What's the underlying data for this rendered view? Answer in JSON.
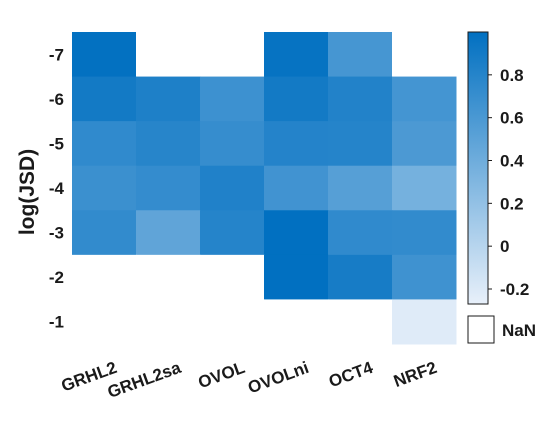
{
  "chart_data": {
    "type": "heatmap",
    "ylabel": "log(JSD)",
    "xlabel": "",
    "title": "",
    "columns": [
      "GRHL2",
      "GRHL2sa",
      "OVOL",
      "OVOLni",
      "OCT4",
      "NRF2"
    ],
    "rows": [
      "-7",
      "-6",
      "-5",
      "-4",
      "-3",
      "-2",
      "-1"
    ],
    "values": [
      [
        0.99,
        null,
        null,
        0.97,
        0.62,
        null
      ],
      [
        0.9,
        0.84,
        0.67,
        0.9,
        0.82,
        0.63
      ],
      [
        0.74,
        0.79,
        0.71,
        0.81,
        0.8,
        0.59
      ],
      [
        0.68,
        0.72,
        0.83,
        0.65,
        0.53,
        0.36
      ],
      [
        0.73,
        0.48,
        0.8,
        1.0,
        0.74,
        0.73
      ],
      [
        null,
        null,
        null,
        1.0,
        0.88,
        0.66
      ],
      [
        null,
        null,
        null,
        null,
        null,
        -0.22
      ]
    ],
    "colorbar": {
      "ticks": [
        "0.8",
        "0.6",
        "0.4",
        "0.2",
        "0",
        "-0.2"
      ],
      "tick_values": [
        0.8,
        0.6,
        0.4,
        0.2,
        0,
        -0.2
      ],
      "range": [
        -0.27,
        1.0
      ],
      "low_color": "#e8f0fa",
      "high_color": "#0170c1"
    },
    "nan_label": "NaN",
    "nan_color": "#ffffff",
    "grid": false
  }
}
